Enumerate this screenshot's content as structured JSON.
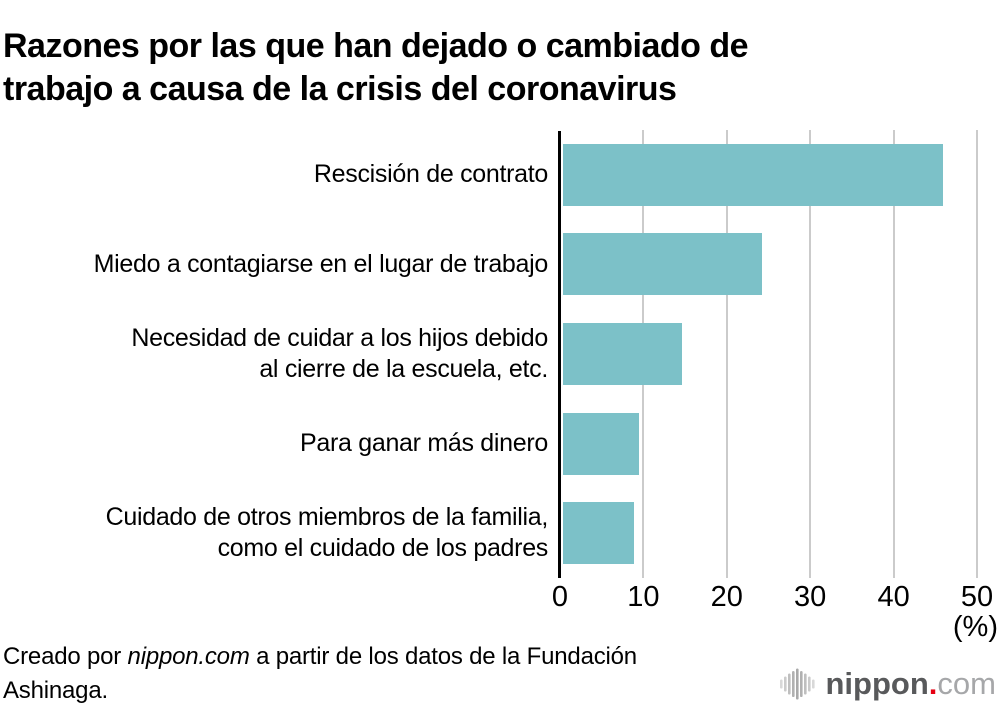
{
  "title": {
    "line1": "Razones por las que han dejado o cambiado de",
    "line2": "trabajo a causa de la crisis del coronavirus"
  },
  "chart_data": {
    "type": "bar",
    "orientation": "horizontal",
    "title": "Razones por las que han dejado o cambiado de trabajo a causa de la crisis del coronavirus",
    "categories": [
      "Rescisión de contrato",
      "Miedo a contagiarse en el lugar de trabajo",
      "Necesidad de cuidar a los hijos debido al cierre de la escuela, etc.",
      "Para ganar más dinero",
      "Cuidado de otros miembros de la familia, como el cuidado de los padres"
    ],
    "category_lines": [
      [
        "Rescisión de contrato"
      ],
      [
        "Miedo a contagiarse en el lugar de trabajo"
      ],
      [
        "Necesidad de cuidar a los hijos debido",
        "al cierre de la escuela, etc."
      ],
      [
        "Para ganar más dinero"
      ],
      [
        "Cuidado de otros miembros de la familia,",
        "como el cuidado de los padres"
      ]
    ],
    "values": [
      45.6,
      23.9,
      14.3,
      9.1,
      8.5
    ],
    "xlim": [
      0,
      50
    ],
    "xticks": [
      0,
      10,
      20,
      30,
      40,
      50
    ],
    "unit_label": "(%)",
    "grid": true,
    "legend": false,
    "bar_color": "#7cc1c8",
    "gridline_color": "#cbcbcb",
    "axis_color": "#000000",
    "text_color": "#000000"
  },
  "footer": {
    "prefix": "Creado por ",
    "brand": "nippon.com",
    "middle": " a partir de los datos de la Fundación",
    "line2": "Ashinaga."
  },
  "logo": {
    "name": "nippon",
    "dot": ".",
    "tld": "com",
    "name_color": "#58595b",
    "dot_color": "#e60012",
    "tld_color": "#a6a7a9",
    "wave_bar_color": "#a9a9a9"
  }
}
